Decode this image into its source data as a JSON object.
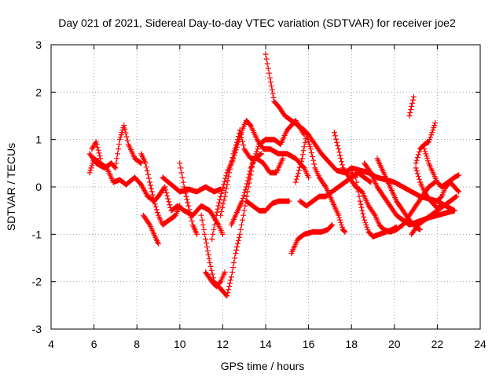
{
  "chart_data": {
    "type": "scatter",
    "title": "Day 021 of 2021, Sidereal Day-to-day VTEC variation (SDTVAR) for receiver joe2",
    "xlabel": "GPS time / hours",
    "ylabel": "SDTVAR / TECUs",
    "xlim": [
      4,
      24
    ],
    "ylim": [
      -3,
      3
    ],
    "xticks": [
      "4",
      "6",
      "8",
      "10",
      "12",
      "14",
      "16",
      "18",
      "20",
      "22",
      "24"
    ],
    "yticks": [
      "-3",
      "-2",
      "-1",
      "0",
      "1",
      "2",
      "3"
    ],
    "grid": true,
    "marker": "plus",
    "color": "#ff0000",
    "series": [
      {
        "name": "track-01",
        "points": [
          [
            5.8,
            0.7
          ],
          [
            6.1,
            0.5
          ],
          [
            6.5,
            0.4
          ],
          [
            6.8,
            0.5
          ],
          [
            7.0,
            0.4
          ],
          [
            7.2,
            1.0
          ],
          [
            7.4,
            1.3
          ],
          [
            7.6,
            0.9
          ],
          [
            7.9,
            0.6
          ],
          [
            8.2,
            0.5
          ]
        ]
      },
      {
        "name": "track-02",
        "points": [
          [
            5.8,
            0.3
          ],
          [
            6.0,
            0.6
          ],
          [
            6.3,
            0.5
          ],
          [
            6.6,
            0.4
          ],
          [
            6.9,
            0.1
          ],
          [
            7.2,
            0.15
          ],
          [
            7.5,
            0.05
          ],
          [
            7.9,
            0.2
          ],
          [
            8.2,
            0.05
          ],
          [
            8.5,
            -0.2
          ],
          [
            8.8,
            -0.3
          ],
          [
            9.0,
            -0.2
          ],
          [
            9.3,
            0.0
          ],
          [
            9.6,
            -0.5
          ],
          [
            9.9,
            -0.4
          ],
          [
            10.2,
            -0.5
          ],
          [
            10.6,
            -0.6
          ],
          [
            11.0,
            -0.4
          ],
          [
            11.4,
            -0.5
          ],
          [
            11.8,
            -0.8
          ],
          [
            12.0,
            -1.0
          ]
        ]
      },
      {
        "name": "track-03",
        "points": [
          [
            5.9,
            0.8
          ],
          [
            6.1,
            0.95
          ],
          [
            6.3,
            0.6
          ]
        ]
      },
      {
        "name": "track-04",
        "points": [
          [
            8.2,
            0.7
          ],
          [
            8.4,
            0.5
          ],
          [
            8.6,
            0.1
          ],
          [
            8.8,
            -0.3
          ],
          [
            9.0,
            -0.6
          ],
          [
            9.2,
            -0.8
          ],
          [
            9.5,
            -0.7
          ],
          [
            9.8,
            -0.6
          ],
          [
            10.0,
            -0.4
          ]
        ]
      },
      {
        "name": "track-05",
        "points": [
          [
            8.3,
            -0.6
          ],
          [
            8.6,
            -0.8
          ],
          [
            8.9,
            -1.1
          ],
          [
            9.0,
            -1.2
          ]
        ]
      },
      {
        "name": "track-06",
        "points": [
          [
            9.2,
            0.2
          ],
          [
            9.6,
            0.05
          ],
          [
            10.0,
            -0.1
          ],
          [
            10.4,
            -0.05
          ],
          [
            10.8,
            -0.1
          ],
          [
            11.2,
            0.0
          ],
          [
            11.6,
            -0.1
          ],
          [
            11.9,
            -0.05
          ]
        ]
      },
      {
        "name": "track-07",
        "points": [
          [
            10.0,
            0.5
          ],
          [
            10.2,
            0.0
          ],
          [
            10.4,
            -0.4
          ],
          [
            10.6,
            -0.8
          ],
          [
            10.8,
            -1.0
          ]
        ]
      },
      {
        "name": "track-08",
        "points": [
          [
            11.0,
            -0.6
          ],
          [
            11.2,
            -1.1
          ],
          [
            11.4,
            -1.6
          ],
          [
            11.6,
            -2.0
          ],
          [
            11.8,
            -2.1
          ],
          [
            12.0,
            -2.2
          ],
          [
            12.2,
            -2.3
          ],
          [
            12.4,
            -1.9
          ],
          [
            12.6,
            -1.4
          ],
          [
            12.8,
            -1.0
          ],
          [
            13.0,
            -0.5
          ],
          [
            13.2,
            0.0
          ],
          [
            13.4,
            0.5
          ],
          [
            13.7,
            0.9
          ],
          [
            14.0,
            1.0
          ],
          [
            14.4,
            1.0
          ],
          [
            14.7,
            0.9
          ],
          [
            15.0,
            1.2
          ],
          [
            15.4,
            1.4
          ],
          [
            15.8,
            1.1
          ]
        ]
      },
      {
        "name": "track-09",
        "points": [
          [
            11.2,
            -1.8
          ],
          [
            11.5,
            -2.0
          ],
          [
            11.7,
            -2.1
          ],
          [
            11.9,
            -2.0
          ],
          [
            12.1,
            -1.8
          ]
        ]
      },
      {
        "name": "track-10",
        "points": [
          [
            11.5,
            -1.1
          ],
          [
            11.7,
            -0.6
          ],
          [
            11.9,
            -0.2
          ],
          [
            12.2,
            0.3
          ],
          [
            12.5,
            0.6
          ],
          [
            12.7,
            0.9
          ],
          [
            12.9,
            1.2
          ],
          [
            13.1,
            1.4
          ],
          [
            13.3,
            1.3
          ],
          [
            13.6,
            1.0
          ],
          [
            13.9,
            0.8
          ],
          [
            14.2,
            0.8
          ],
          [
            14.6,
            0.7
          ],
          [
            15.0,
            0.7
          ],
          [
            15.4,
            0.6
          ],
          [
            15.8,
            0.4
          ],
          [
            16.0,
            0.2
          ]
        ]
      },
      {
        "name": "track-11",
        "points": [
          [
            11.9,
            -0.6
          ],
          [
            12.1,
            -0.2
          ],
          [
            12.3,
            0.3
          ],
          [
            12.5,
            0.7
          ],
          [
            12.7,
            1.0
          ],
          [
            12.8,
            1.2
          ],
          [
            13.0,
            0.8
          ],
          [
            13.3,
            0.6
          ],
          [
            13.6,
            0.6
          ],
          [
            13.9,
            0.5
          ],
          [
            14.2,
            0.3
          ],
          [
            14.5,
            0.3
          ],
          [
            14.8,
            0.6
          ]
        ]
      },
      {
        "name": "track-12",
        "points": [
          [
            12.4,
            -0.8
          ],
          [
            12.7,
            -0.5
          ],
          [
            12.9,
            -0.3
          ],
          [
            13.1,
            0.0
          ],
          [
            13.3,
            0.4
          ],
          [
            13.5,
            0.6
          ],
          [
            13.8,
            0.7
          ]
        ]
      },
      {
        "name": "track-13",
        "points": [
          [
            13.1,
            -0.3
          ],
          [
            13.4,
            -0.4
          ],
          [
            13.7,
            -0.5
          ],
          [
            14.0,
            -0.5
          ],
          [
            14.3,
            -0.35
          ],
          [
            14.6,
            -0.3
          ],
          [
            14.9,
            -0.3
          ],
          [
            15.1,
            -0.3
          ]
        ]
      },
      {
        "name": "track-14",
        "points": [
          [
            14.0,
            2.8
          ],
          [
            14.2,
            2.3
          ],
          [
            14.4,
            1.8
          ],
          [
            14.6,
            1.7
          ],
          [
            14.9,
            1.5
          ],
          [
            15.2,
            1.4
          ],
          [
            15.5,
            1.3
          ],
          [
            15.8,
            1.2
          ],
          [
            16.0,
            1.1
          ],
          [
            16.3,
            0.9
          ],
          [
            16.6,
            0.7
          ],
          [
            17.0,
            0.5
          ],
          [
            17.3,
            0.35
          ],
          [
            17.7,
            0.3
          ],
          [
            18.0,
            0.4
          ],
          [
            18.4,
            0.35
          ],
          [
            18.8,
            0.3
          ],
          [
            19.2,
            0.2
          ],
          [
            19.6,
            0.15
          ],
          [
            20.0,
            0.1
          ],
          [
            20.4,
            0.0
          ],
          [
            20.8,
            -0.1
          ],
          [
            21.2,
            -0.2
          ],
          [
            21.6,
            -0.25
          ],
          [
            22.0,
            -0.3
          ],
          [
            22.4,
            -0.4
          ],
          [
            22.8,
            -0.5
          ]
        ]
      },
      {
        "name": "track-15",
        "points": [
          [
            15.2,
            -1.4
          ],
          [
            15.5,
            -1.1
          ],
          [
            15.8,
            -1.0
          ],
          [
            16.2,
            -0.95
          ],
          [
            16.6,
            -0.95
          ],
          [
            16.9,
            -0.9
          ],
          [
            17.1,
            -0.8
          ]
        ]
      },
      {
        "name": "track-16",
        "points": [
          [
            15.4,
            0.1
          ],
          [
            15.7,
            0.6
          ],
          [
            15.9,
            1.1
          ],
          [
            16.1,
            0.8
          ],
          [
            16.3,
            0.4
          ],
          [
            16.5,
            0.2
          ],
          [
            16.8,
            0.0
          ],
          [
            17.1,
            -0.3
          ],
          [
            17.4,
            -0.6
          ],
          [
            17.6,
            -0.9
          ],
          [
            17.7,
            -0.95
          ]
        ]
      },
      {
        "name": "track-17",
        "points": [
          [
            15.6,
            -0.3
          ],
          [
            15.9,
            -0.4
          ],
          [
            16.2,
            -0.3
          ],
          [
            16.5,
            -0.2
          ],
          [
            16.8,
            -0.2
          ],
          [
            17.1,
            -0.1
          ],
          [
            17.4,
            0.0
          ],
          [
            17.7,
            0.1
          ],
          [
            18.0,
            0.2
          ],
          [
            18.3,
            0.3
          ],
          [
            18.6,
            0.2
          ],
          [
            18.9,
            0.1
          ]
        ]
      },
      {
        "name": "track-18",
        "points": [
          [
            17.2,
            1.15
          ],
          [
            17.4,
            0.8
          ],
          [
            17.6,
            0.4
          ],
          [
            17.9,
            0.2
          ],
          [
            18.2,
            0.0
          ],
          [
            18.5,
            -0.1
          ],
          [
            18.8,
            -0.4
          ],
          [
            19.1,
            -0.6
          ],
          [
            19.3,
            -0.8
          ],
          [
            19.5,
            -0.9
          ],
          [
            19.8,
            -0.95
          ],
          [
            20.1,
            -0.9
          ],
          [
            20.4,
            -0.8
          ],
          [
            20.7,
            -0.6
          ],
          [
            21.0,
            -0.4
          ],
          [
            21.3,
            -0.2
          ],
          [
            21.6,
            0.0
          ],
          [
            21.9,
            0.1
          ]
        ]
      },
      {
        "name": "track-19",
        "points": [
          [
            18.0,
            0.3
          ],
          [
            18.2,
            0.2
          ],
          [
            18.4,
            -0.3
          ],
          [
            18.6,
            -0.7
          ],
          [
            18.8,
            -0.95
          ],
          [
            19.0,
            -1.05
          ],
          [
            19.3,
            -1.0
          ],
          [
            19.6,
            -0.95
          ],
          [
            19.9,
            -0.9
          ],
          [
            20.1,
            -0.85
          ]
        ]
      },
      {
        "name": "track-20",
        "points": [
          [
            18.6,
            0.5
          ],
          [
            18.9,
            0.3
          ],
          [
            19.2,
            0.0
          ],
          [
            19.5,
            -0.2
          ],
          [
            19.8,
            -0.4
          ],
          [
            20.1,
            -0.6
          ],
          [
            20.4,
            -0.7
          ],
          [
            20.7,
            -0.8
          ],
          [
            21.0,
            -0.75
          ],
          [
            21.3,
            -0.7
          ],
          [
            21.6,
            -0.65
          ],
          [
            22.0,
            -0.6
          ],
          [
            22.4,
            -0.55
          ],
          [
            22.8,
            -0.5
          ]
        ]
      },
      {
        "name": "track-21",
        "points": [
          [
            19.2,
            0.6
          ],
          [
            19.5,
            0.3
          ],
          [
            19.8,
            0.0
          ],
          [
            20.1,
            -0.3
          ],
          [
            20.4,
            -0.5
          ],
          [
            20.7,
            -0.7
          ],
          [
            21.0,
            -0.85
          ],
          [
            21.2,
            -0.9
          ]
        ]
      },
      {
        "name": "track-22",
        "points": [
          [
            20.7,
            1.5
          ],
          [
            20.8,
            1.7
          ],
          [
            20.9,
            1.9
          ]
        ]
      },
      {
        "name": "track-23",
        "points": [
          [
            20.8,
            -1.0
          ],
          [
            21.1,
            -0.8
          ],
          [
            21.4,
            -0.7
          ],
          [
            21.7,
            -0.6
          ],
          [
            22.0,
            -0.5
          ],
          [
            22.3,
            -0.4
          ],
          [
            22.6,
            -0.3
          ],
          [
            22.9,
            -0.2
          ]
        ]
      },
      {
        "name": "track-24",
        "points": [
          [
            21.0,
            0.5
          ],
          [
            21.2,
            0.8
          ],
          [
            21.4,
            0.9
          ],
          [
            21.6,
            0.95
          ],
          [
            21.8,
            1.2
          ],
          [
            21.9,
            1.35
          ]
        ]
      },
      {
        "name": "track-25",
        "points": [
          [
            21.0,
            0.4
          ],
          [
            21.2,
            0.1
          ],
          [
            21.4,
            -0.1
          ],
          [
            21.6,
            -0.25
          ],
          [
            21.8,
            -0.35
          ],
          [
            22.0,
            -0.45
          ],
          [
            22.2,
            -0.4
          ]
        ]
      },
      {
        "name": "track-26",
        "points": [
          [
            21.4,
            0.8
          ],
          [
            21.6,
            0.5
          ],
          [
            21.8,
            0.3
          ],
          [
            22.0,
            0.1
          ],
          [
            22.2,
            0.0
          ],
          [
            22.5,
            0.1
          ],
          [
            22.8,
            0.2
          ],
          [
            23.0,
            0.25
          ]
        ]
      },
      {
        "name": "track-27",
        "points": [
          [
            22.0,
            -0.3
          ],
          [
            22.2,
            -0.2
          ],
          [
            22.4,
            0.0
          ],
          [
            22.6,
            0.1
          ],
          [
            22.8,
            0.0
          ],
          [
            23.0,
            -0.1
          ]
        ]
      }
    ]
  }
}
